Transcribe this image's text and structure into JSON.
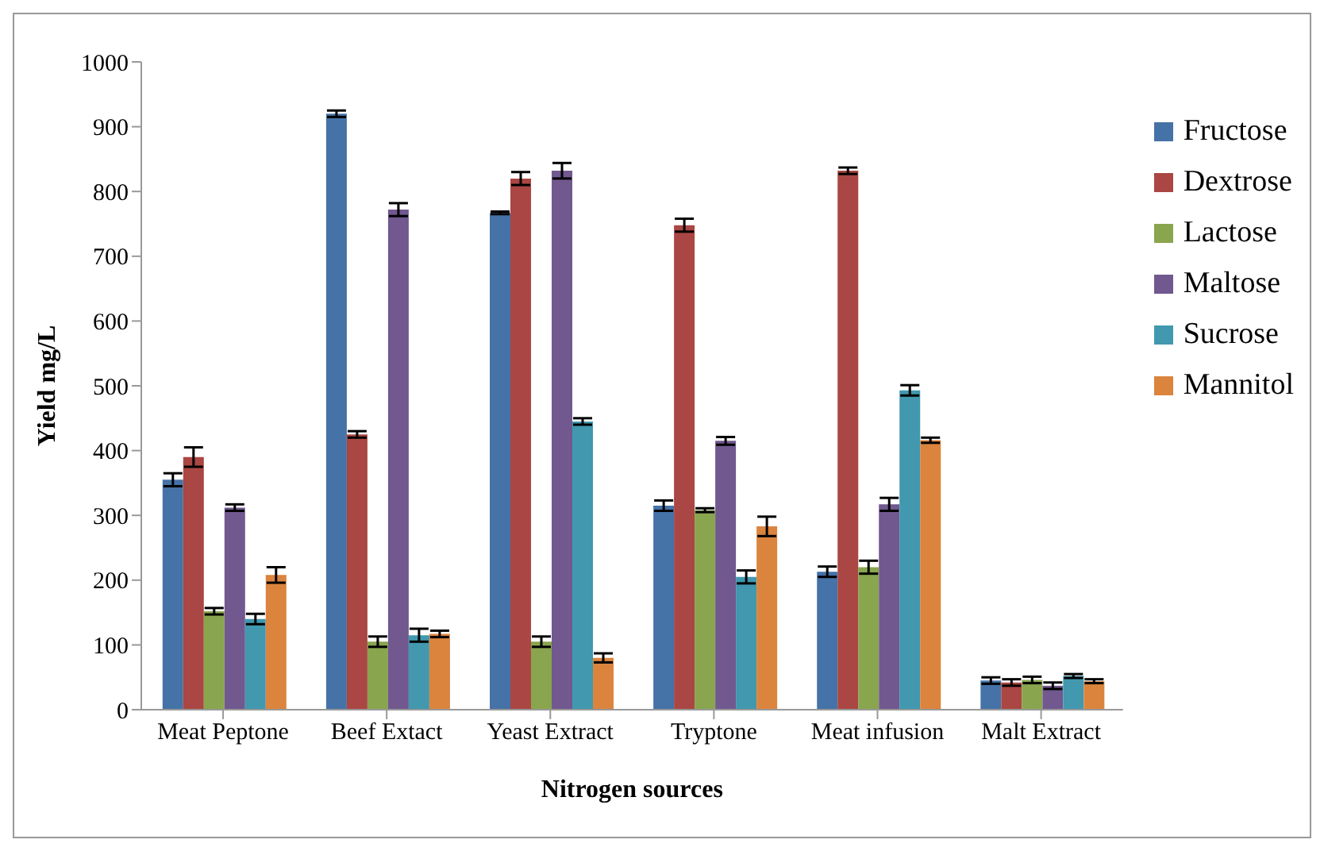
{
  "chart_data": {
    "type": "bar",
    "xlabel": "Nitrogen sources",
    "ylabel": "Yield mg/L",
    "categories": [
      "Meat Peptone",
      "Beef Extact",
      "Yeast Extract",
      "Tryptone",
      "Meat infusion",
      "Malt Extract"
    ],
    "series": [
      {
        "name": "Fructose",
        "color": "#4572a7",
        "values": [
          355,
          920,
          767,
          315,
          213,
          45
        ],
        "errors": [
          10,
          5,
          2,
          8,
          8,
          5
        ]
      },
      {
        "name": "Dextrose",
        "color": "#aa4643",
        "values": [
          390,
          425,
          820,
          748,
          832,
          42
        ],
        "errors": [
          15,
          5,
          10,
          10,
          5,
          5
        ]
      },
      {
        "name": "Lactose",
        "color": "#89a54e",
        "values": [
          152,
          105,
          105,
          308,
          220,
          46
        ],
        "errors": [
          5,
          8,
          8,
          3,
          10,
          5
        ]
      },
      {
        "name": "Maltose",
        "color": "#71588f",
        "values": [
          312,
          772,
          832,
          415,
          317,
          37
        ],
        "errors": [
          5,
          10,
          12,
          6,
          10,
          5
        ]
      },
      {
        "name": "Sucrose",
        "color": "#4198af",
        "values": [
          140,
          115,
          445,
          205,
          493,
          52
        ],
        "errors": [
          8,
          10,
          5,
          10,
          8,
          3
        ]
      },
      {
        "name": "Mannitol",
        "color": "#db843d",
        "values": [
          208,
          117,
          80,
          283,
          416,
          44
        ],
        "errors": [
          12,
          5,
          7,
          15,
          4,
          3
        ]
      }
    ],
    "ylim": [
      0,
      1000
    ],
    "yticks": [
      0,
      100,
      200,
      300,
      400,
      500,
      600,
      700,
      800,
      900,
      1000
    ],
    "grid": false,
    "legend": "right"
  }
}
